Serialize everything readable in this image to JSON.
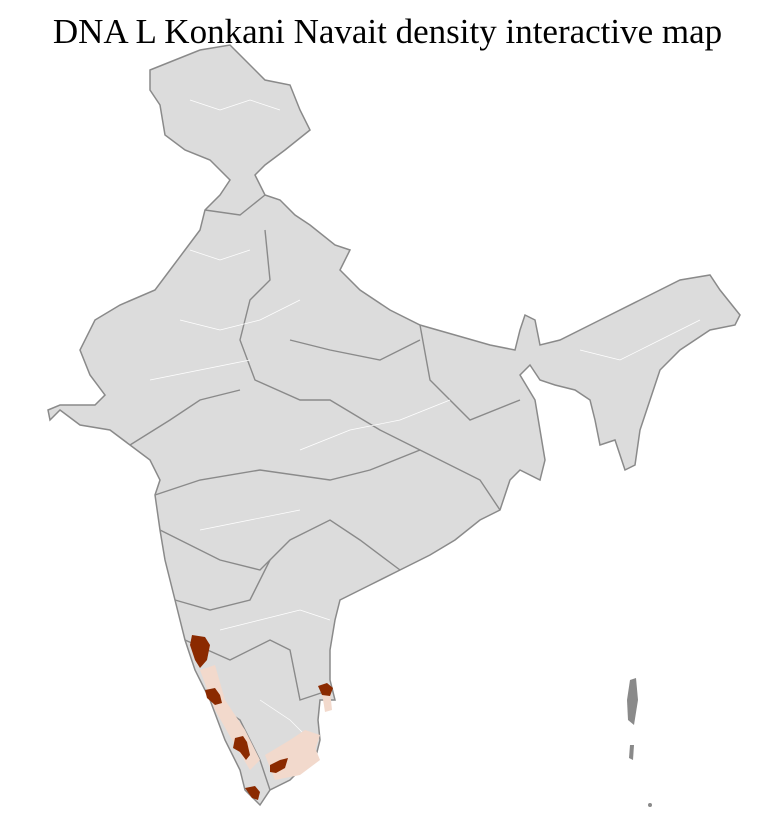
{
  "title": "DNA L Konkani Navait density interactive map",
  "map": {
    "region": "India",
    "level": "districts",
    "colors": {
      "base": "#dcdcdc",
      "state_border": "#8a8a8a",
      "district_border": "#ffffff",
      "high_density": "#8b2a00",
      "low_density": "#f2d9cc"
    },
    "highlighted_areas": [
      {
        "area": "coastal Karnataka (north)",
        "level": "high"
      },
      {
        "area": "coastal Karnataka (south)",
        "level": "high"
      },
      {
        "area": "central Kerala",
        "level": "high"
      },
      {
        "area": "southern Kerala",
        "level": "high"
      },
      {
        "area": "central Tamil Nadu",
        "level": "high"
      },
      {
        "area": "northern Tamil Nadu coast",
        "level": "high"
      },
      {
        "area": "Kerala coast",
        "level": "low"
      },
      {
        "area": "Tamil Nadu interior",
        "level": "low"
      }
    ]
  }
}
